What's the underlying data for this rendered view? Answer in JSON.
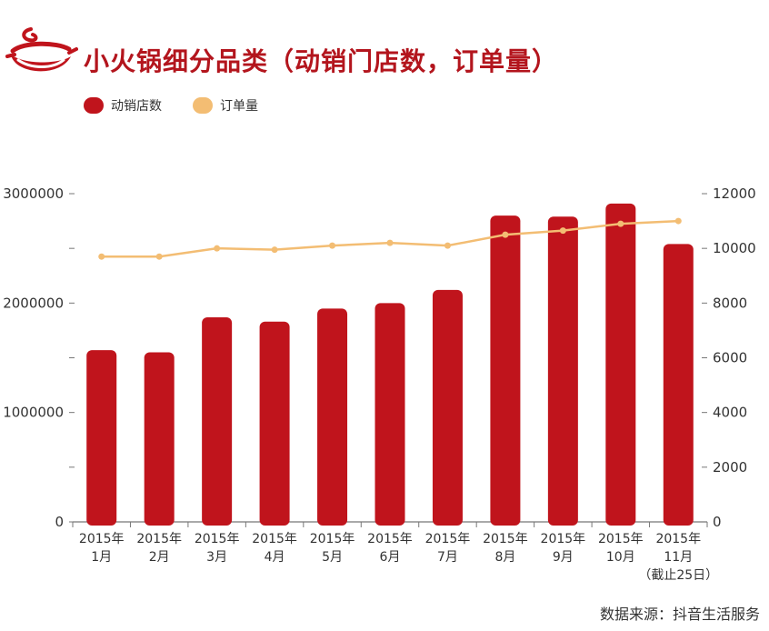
{
  "header": {
    "title": "小火锅细分品类（动销门店数，订单量）"
  },
  "legend": [
    {
      "label": "动销店数",
      "color": "#c0141c"
    },
    {
      "label": "订单量",
      "color": "#f3bd73"
    }
  ],
  "source": "数据来源：抖音生活服务",
  "colors": {
    "bar": "#c0141c",
    "line": "#f3bd73",
    "title": "#b3151d"
  },
  "chart_data": {
    "type": "bar+line",
    "categories": [
      "2015年 1月",
      "2015年 2月",
      "2015年 3月",
      "2015年 4月",
      "2015年 5月",
      "2015年 6月",
      "2015年 7月",
      "2015年 8月",
      "2015年 9月",
      "2015年 10月",
      "2015年 11月（截止25日）"
    ],
    "category_lines": [
      [
        "2015年",
        "1月"
      ],
      [
        "2015年",
        "2月"
      ],
      [
        "2015年",
        "3月"
      ],
      [
        "2015年",
        "4月"
      ],
      [
        "2015年",
        "5月"
      ],
      [
        "2015年",
        "6月"
      ],
      [
        "2015年",
        "7月"
      ],
      [
        "2015年",
        "8月"
      ],
      [
        "2015年",
        "9月"
      ],
      [
        "2015年",
        "10月"
      ],
      [
        "2015年",
        "11月",
        "（截止25日）"
      ]
    ],
    "series": [
      {
        "name": "动销店数",
        "type": "bar",
        "axis": "left",
        "values": [
          1570000,
          1550000,
          1870000,
          1830000,
          1950000,
          2000000,
          2120000,
          2800000,
          2790000,
          2910000,
          2540000
        ]
      },
      {
        "name": "订单量",
        "type": "line",
        "axis": "right",
        "values": [
          9700,
          9700,
          10000,
          9950,
          10100,
          10200,
          10100,
          10500,
          10650,
          10900,
          11000
        ]
      }
    ],
    "left_axis": {
      "ylim": [
        0,
        3000000
      ],
      "ticks": [
        "0",
        "1000000",
        "2000000",
        "3000000"
      ],
      "tick_values": [
        0,
        1000000,
        2000000,
        3000000
      ]
    },
    "right_axis": {
      "ylim": [
        0,
        12000
      ],
      "ticks": [
        "0",
        "2000",
        "4000",
        "6000",
        "8000",
        "10000",
        "12000"
      ],
      "tick_values": [
        0,
        2000,
        4000,
        6000,
        8000,
        10000,
        12000
      ]
    },
    "grid": false
  }
}
